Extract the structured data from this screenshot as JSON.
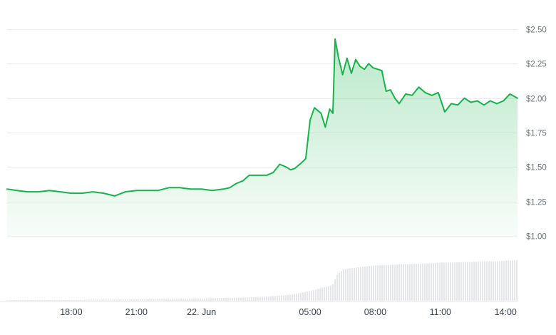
{
  "chart_data": {
    "type": "area",
    "y_axis": {
      "ticks": [
        "$2.50",
        "$2.25",
        "$2.00",
        "$1.75",
        "$1.50",
        "$1.25",
        "$1.00"
      ],
      "tick_values": [
        2.5,
        2.25,
        2.0,
        1.75,
        1.5,
        1.25,
        1.0
      ],
      "ylim": [
        1.0,
        2.5
      ],
      "position": "right"
    },
    "x_axis": {
      "tick_labels": [
        "18:00",
        "21:00",
        "22. Jun",
        "05:00",
        "08:00",
        "11:00",
        "14:00"
      ],
      "tick_hours": [
        18,
        21,
        24,
        29,
        32,
        35,
        38
      ],
      "xlim_hours": [
        15.05,
        38.55
      ]
    },
    "grid": true,
    "line_color": "#16b34a",
    "fill_color": "#16b34a",
    "volume_color": "#e5e7eb",
    "series": [
      {
        "x_hours": [
          15.05,
          15.5,
          16.0,
          16.5,
          17.0,
          17.5,
          18.0,
          18.5,
          19.0,
          19.5,
          20.0,
          20.5,
          21.0,
          21.5,
          22.0,
          22.5,
          23.0,
          23.5,
          24.0,
          24.5,
          25.0,
          25.3,
          25.6,
          25.9,
          26.2,
          26.5,
          26.8,
          27.0,
          27.3,
          27.6,
          27.9,
          28.1,
          28.3,
          28.6,
          28.8,
          29.0,
          29.2,
          29.5,
          29.7,
          29.9,
          30.05,
          30.15,
          30.3,
          30.5,
          30.7,
          30.9,
          31.1,
          31.3,
          31.5,
          31.7,
          31.9,
          32.1,
          32.3,
          32.5,
          32.7,
          32.9,
          33.1,
          33.4,
          33.7,
          34.0,
          34.3,
          34.6,
          34.9,
          35.2,
          35.5,
          35.8,
          36.1,
          36.4,
          36.7,
          37.0,
          37.3,
          37.6,
          37.9,
          38.2,
          38.55
        ],
        "values": [
          1.34,
          1.33,
          1.32,
          1.32,
          1.33,
          1.32,
          1.31,
          1.31,
          1.32,
          1.31,
          1.29,
          1.32,
          1.33,
          1.33,
          1.33,
          1.35,
          1.35,
          1.34,
          1.34,
          1.33,
          1.34,
          1.35,
          1.38,
          1.4,
          1.44,
          1.44,
          1.44,
          1.44,
          1.46,
          1.52,
          1.5,
          1.48,
          1.49,
          1.53,
          1.56,
          1.84,
          1.93,
          1.89,
          1.79,
          1.92,
          1.89,
          2.43,
          2.3,
          2.17,
          2.29,
          2.18,
          2.28,
          2.23,
          2.21,
          2.25,
          2.22,
          2.21,
          2.2,
          2.05,
          2.06,
          2.0,
          1.96,
          2.03,
          2.02,
          2.08,
          2.04,
          2.02,
          2.04,
          1.9,
          1.96,
          1.95,
          2.0,
          1.97,
          1.98,
          1.95,
          1.98,
          1.96,
          1.98,
          2.03,
          2.0
        ]
      }
    ],
    "volume": {
      "x_hours": [
        15.05,
        16,
        17,
        18,
        19,
        20,
        21,
        22,
        23,
        24,
        25,
        26,
        27,
        28,
        29,
        30,
        30.2,
        30.5,
        31,
        31.5,
        32,
        32.5,
        33,
        33.5,
        34,
        34.5,
        35,
        35.5,
        36,
        36.5,
        37,
        37.5,
        38,
        38.55
      ],
      "values": [
        0.2,
        0.2,
        0.3,
        0.3,
        0.4,
        0.4,
        0.5,
        0.6,
        0.7,
        0.8,
        1.0,
        1.2,
        1.5,
        2.0,
        3.5,
        5.5,
        9,
        11,
        11.5,
        12,
        12.3,
        12.5,
        12.7,
        12.8,
        13,
        13.1,
        13.3,
        13.4,
        13.5,
        13.6,
        13.7,
        13.8,
        14,
        14.2
      ],
      "max": 14.2
    }
  }
}
